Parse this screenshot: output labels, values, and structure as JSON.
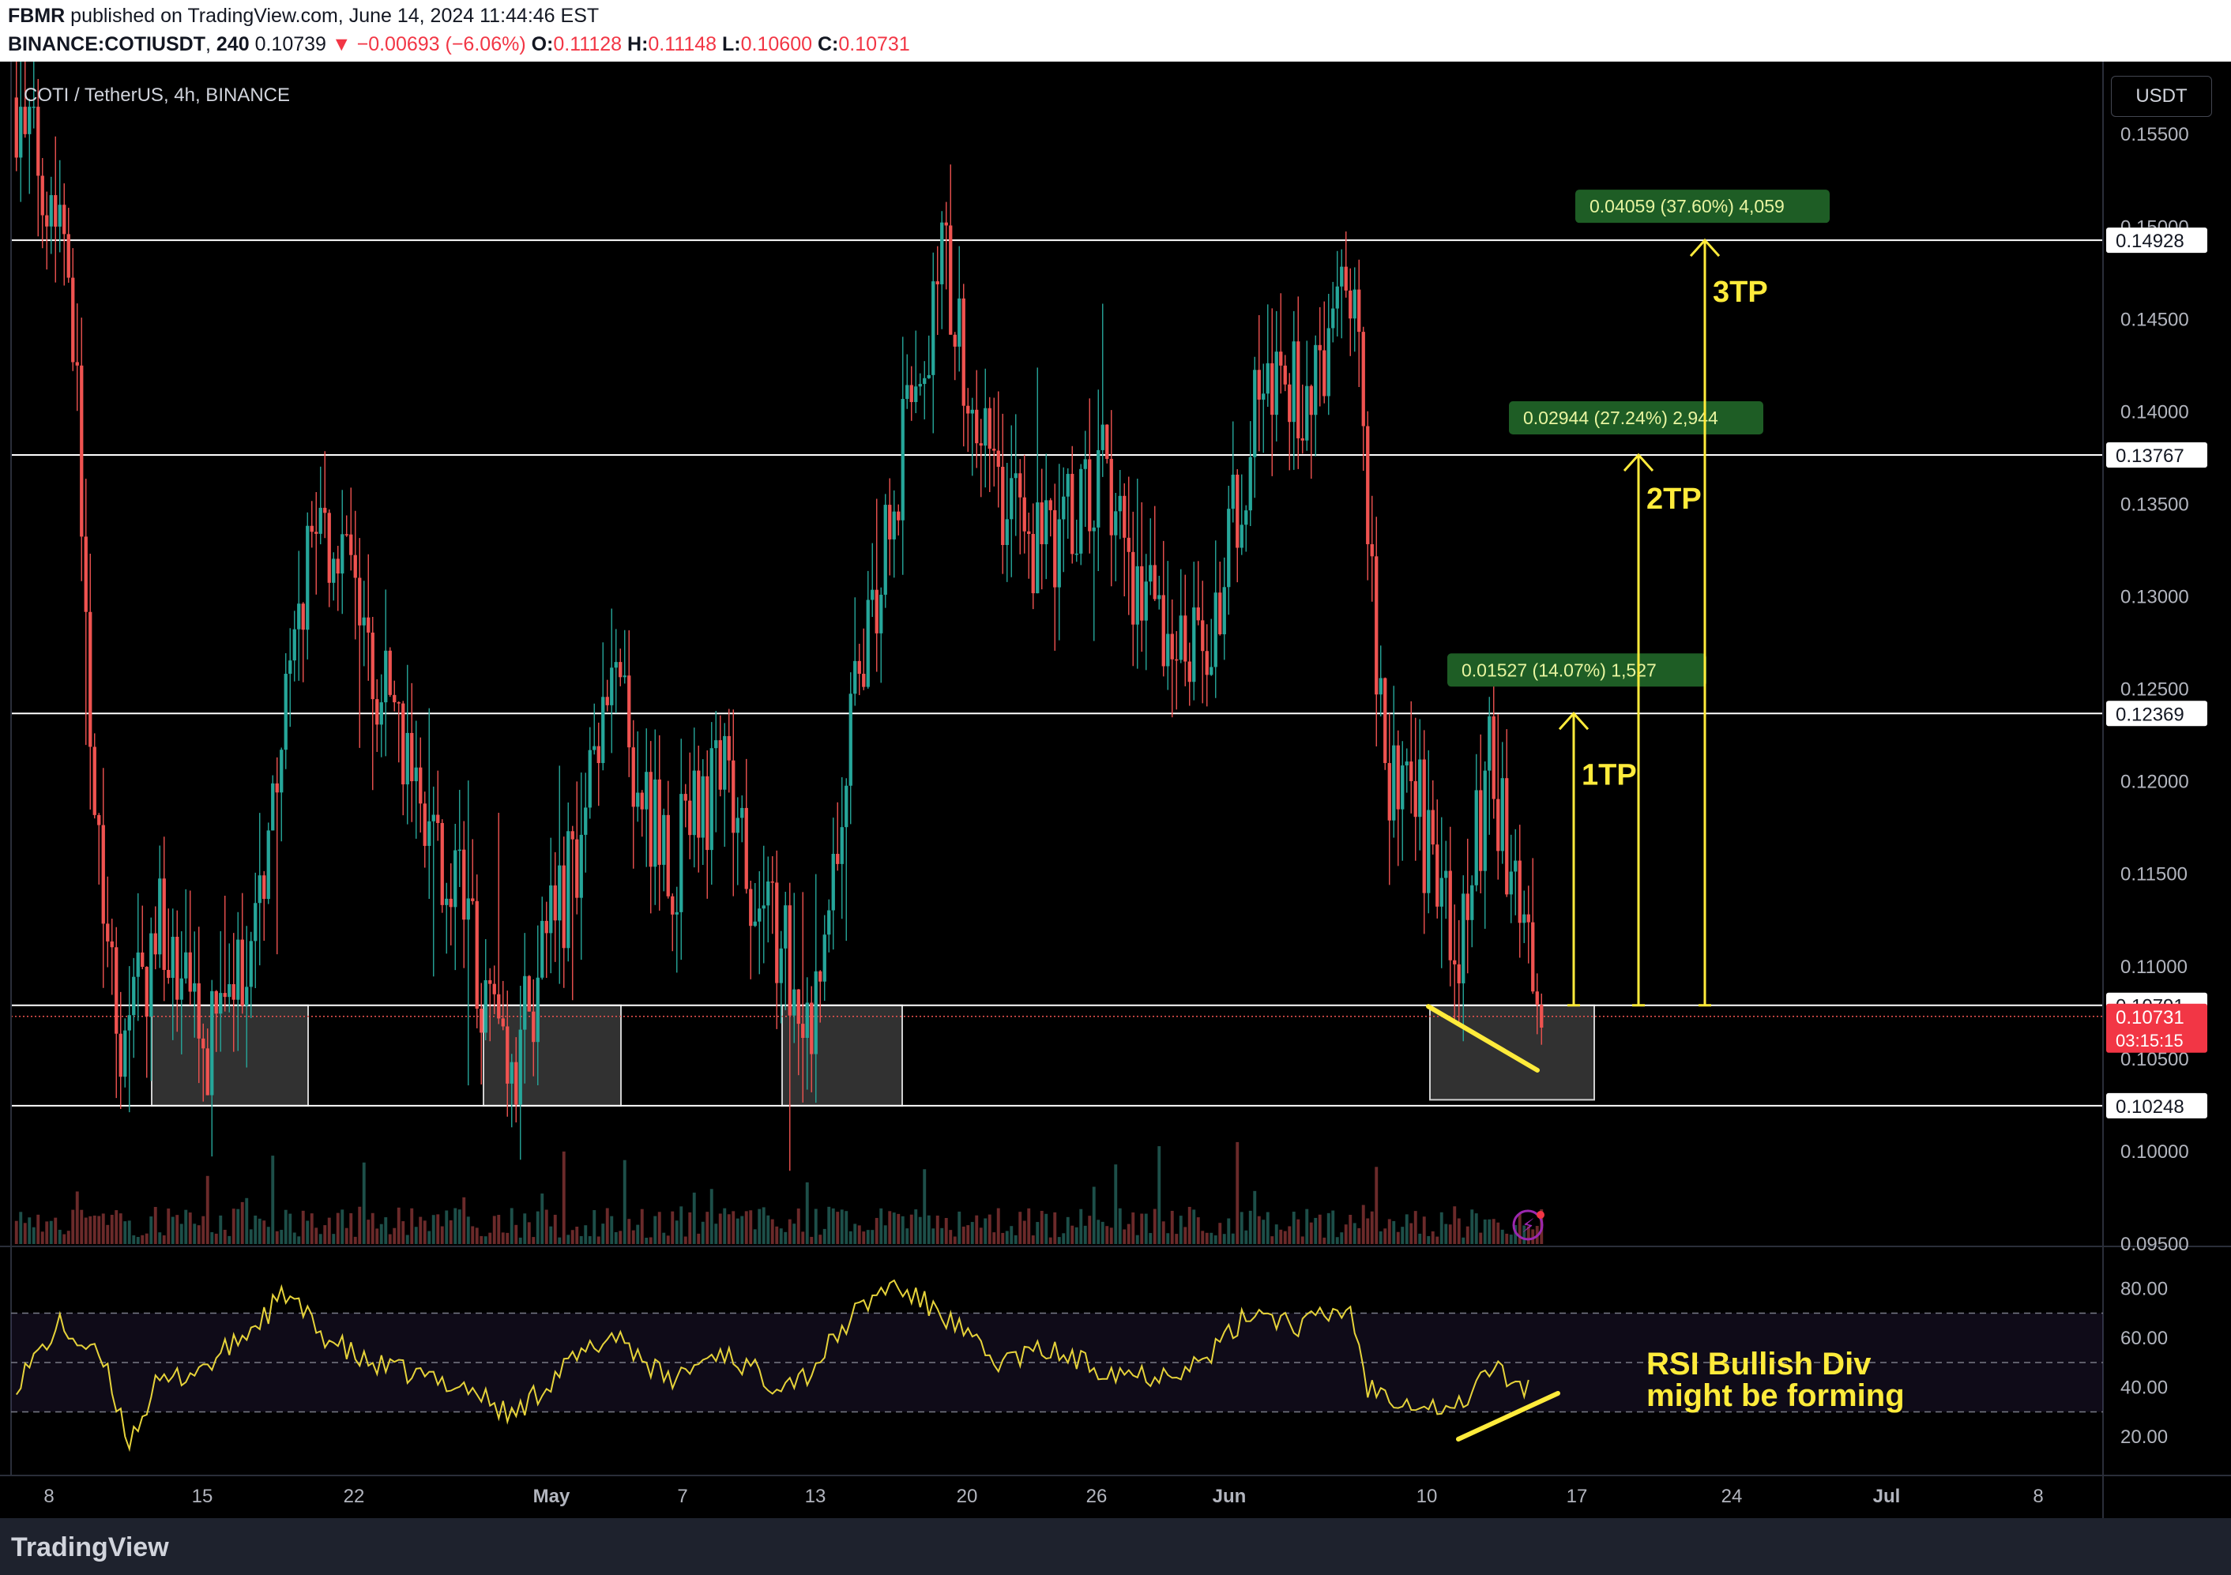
{
  "header": {
    "author": "FBMR",
    "published": " published on TradingView.com, June 14, 2024 11:44:46 EST",
    "symbol": "BINANCE:COTIUSDT",
    "interval": "240",
    "last": "0.10739",
    "change": "▼ −0.00693 (−6.06%)",
    "o_label": "O:",
    "o": "0.11128",
    "h_label": "H:",
    "h": "0.11148",
    "l_label": "L:",
    "l": "0.10600",
    "c_label": "C:",
    "c": "0.10731"
  },
  "legend": {
    "title": "COTI / TetherUS, 4h, BINANCE"
  },
  "currency_button": "USDT",
  "footer": {
    "brand": "TradingView"
  },
  "colors": {
    "up": "#26a69a",
    "down": "#ef5350",
    "annotation": "#ffeb3b",
    "measure_box": "#1e5d25",
    "rsi_line": "#e6d33a",
    "level_line": "#ffffff"
  },
  "chart_data": {
    "type": "candlestick",
    "title": "COTI / TetherUS, 4h, BINANCE",
    "y_range": [
      0.095,
      0.158
    ],
    "y_ticks": [
      "0.15500",
      "0.15000",
      "0.14500",
      "0.14000",
      "0.13500",
      "0.13000",
      "0.12500",
      "0.12000",
      "0.11500",
      "0.11000",
      "0.10500",
      "0.10000",
      "0.09500"
    ],
    "x_ticks": [
      "8",
      "15",
      "22",
      "May",
      "7",
      "13",
      "20",
      "26",
      "Jun",
      "10",
      "17",
      "24",
      "Jul",
      "8"
    ],
    "swing_path": [
      [
        0,
        0.157
      ],
      [
        12,
        0.15
      ],
      [
        18,
        0.12
      ],
      [
        24,
        0.106
      ],
      [
        33,
        0.112
      ],
      [
        43,
        0.105
      ],
      [
        54,
        0.111
      ],
      [
        69,
        0.135
      ],
      [
        78,
        0.129
      ],
      [
        92,
        0.12
      ],
      [
        104,
        0.112
      ],
      [
        114,
        0.104
      ],
      [
        126,
        0.114
      ],
      [
        138,
        0.125
      ],
      [
        150,
        0.115
      ],
      [
        162,
        0.12
      ],
      [
        174,
        0.112
      ],
      [
        183,
        0.107
      ],
      [
        192,
        0.122
      ],
      [
        201,
        0.135
      ],
      [
        213,
        0.148
      ],
      [
        225,
        0.136
      ],
      [
        237,
        0.132
      ],
      [
        249,
        0.137
      ],
      [
        261,
        0.129
      ],
      [
        273,
        0.126
      ],
      [
        285,
        0.14
      ],
      [
        297,
        0.141
      ],
      [
        307,
        0.148
      ],
      [
        315,
        0.121
      ],
      [
        323,
        0.118
      ],
      [
        331,
        0.11
      ],
      [
        339,
        0.121
      ],
      [
        345,
        0.113
      ],
      [
        351,
        0.1073
      ]
    ],
    "horizontal_levels": [
      {
        "value": 0.14928,
        "label": "0.14928"
      },
      {
        "value": 0.13767,
        "label": "0.13767"
      },
      {
        "value": 0.12369,
        "label": "0.12369"
      },
      {
        "value": 0.10791,
        "label": "0.10791"
      },
      {
        "value": 0.10248,
        "label": "0.10248"
      }
    ],
    "last_price": {
      "value": 0.10731,
      "label": "0.10731",
      "countdown": "03:15:15"
    },
    "support_zones": [
      {
        "from": "Apr 12",
        "to": "Apr 20"
      },
      {
        "from": "Apr 28",
        "to": "May 5"
      },
      {
        "from": "May 12",
        "to": "May 18"
      },
      {
        "from": "Jun 10",
        "to": "Jun 18"
      }
    ],
    "targets": [
      {
        "label": "1TP",
        "measure": "0.01527 (14.07%) 1,527",
        "to": 0.12369
      },
      {
        "label": "2TP",
        "measure": "0.02944 (27.24%) 2,944",
        "to": 0.13767
      },
      {
        "label": "3TP",
        "measure": "0.04059 (37.60%) 4,059",
        "to": 0.14928
      }
    ],
    "rsi": {
      "y_ticks": [
        "80.00",
        "60.00",
        "40.00",
        "20.00"
      ],
      "bands": [
        70,
        50,
        30
      ],
      "annotation": [
        "RSI Bullish Div",
        "might be forming"
      ],
      "path": [
        [
          0,
          42
        ],
        [
          10,
          65
        ],
        [
          20,
          50
        ],
        [
          26,
          18
        ],
        [
          32,
          40
        ],
        [
          45,
          50
        ],
        [
          55,
          65
        ],
        [
          62,
          78
        ],
        [
          70,
          62
        ],
        [
          80,
          50
        ],
        [
          92,
          45
        ],
        [
          104,
          40
        ],
        [
          114,
          28
        ],
        [
          126,
          48
        ],
        [
          138,
          62
        ],
        [
          150,
          42
        ],
        [
          162,
          55
        ],
        [
          174,
          42
        ],
        [
          182,
          45
        ],
        [
          192,
          68
        ],
        [
          201,
          82
        ],
        [
          213,
          70
        ],
        [
          225,
          50
        ],
        [
          237,
          55
        ],
        [
          249,
          48
        ],
        [
          261,
          45
        ],
        [
          273,
          50
        ],
        [
          285,
          72
        ],
        [
          295,
          65
        ],
        [
          307,
          72
        ],
        [
          311,
          40
        ],
        [
          320,
          35
        ],
        [
          331,
          30
        ],
        [
          339,
          48
        ],
        [
          345,
          42
        ],
        [
          350,
          38
        ]
      ]
    }
  }
}
